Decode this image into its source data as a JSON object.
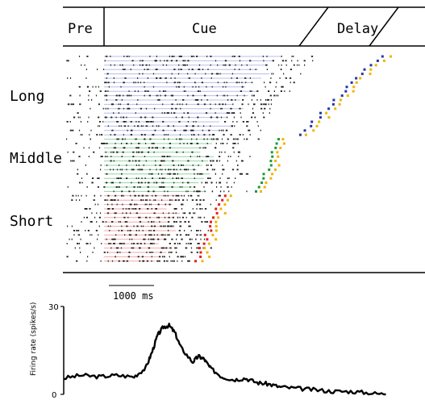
{
  "chart_data": [
    {
      "type": "raster",
      "epochs": [
        "Pre",
        "Cue",
        "Delay"
      ],
      "groups": [
        {
          "label": "Long",
          "trials": 19,
          "guide_color": "#b8bce8",
          "marker_colors": [
            "#2436a8",
            "#f0b400"
          ]
        },
        {
          "label": "Middle",
          "trials": 13,
          "guide_color": "#8fd4a0",
          "marker_colors": [
            "#1a9a3a",
            "#f0b400"
          ]
        },
        {
          "label": "Short",
          "trials": 16,
          "guide_color": "#f3a7a7",
          "marker_colors": [
            "#e02020",
            "#f0b400"
          ]
        }
      ],
      "scale_bar": "1000 ms"
    },
    {
      "type": "line",
      "xlabel": "",
      "ylabel": "Firing rate (spikes/s)",
      "ylim": [
        0,
        30
      ],
      "yticks": [
        0,
        30
      ],
      "x_unit": "ms",
      "xlim": [
        0,
        5700
      ],
      "series": [
        {
          "x": [
            0,
            300,
            600,
            900,
            1200,
            1400,
            1500,
            1600,
            1700,
            1800,
            1900,
            2000,
            2200,
            2300,
            2400,
            2500,
            2700,
            2900,
            3100,
            3300,
            3500,
            3700,
            4000,
            4300,
            4600,
            4900,
            5200,
            5500
          ],
          "values": [
            5.5,
            6.5,
            6.0,
            6.5,
            6.0,
            9.0,
            14.0,
            20.0,
            23.0,
            23.5,
            21.0,
            16.0,
            11.0,
            13.0,
            12.0,
            9.0,
            6.0,
            5.0,
            5.5,
            4.0,
            3.5,
            2.5,
            2.0,
            1.5,
            1.0,
            1.0,
            0.5,
            0.0
          ]
        }
      ]
    }
  ]
}
